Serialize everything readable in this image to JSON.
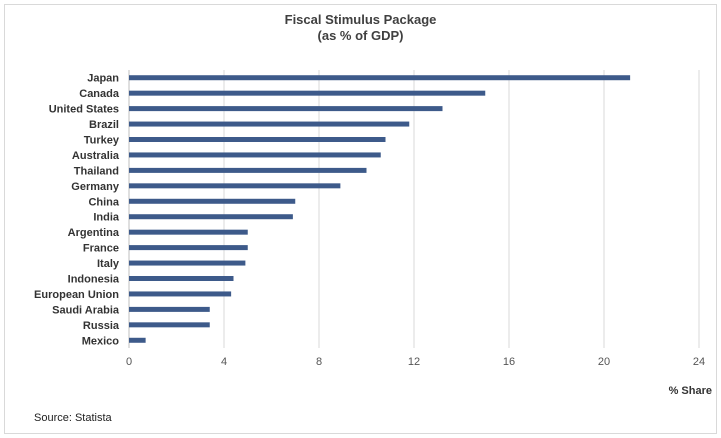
{
  "chart_data": {
    "type": "bar",
    "orientation": "horizontal",
    "title": "Fiscal Stimulus Package",
    "subtitle": "(as % of GDP)",
    "xlabel": "% Share",
    "ylabel": "",
    "categories": [
      "Japan",
      "Canada",
      "United States",
      "Brazil",
      "Turkey",
      "Australia",
      "Thailand",
      "Germany",
      "China",
      "India",
      "Argentina",
      "France",
      "Italy",
      "Indonesia",
      "European Union",
      "Saudi Arabia",
      "Russia",
      "Mexico"
    ],
    "values": [
      21.1,
      15.0,
      13.2,
      11.8,
      10.8,
      10.6,
      10.0,
      8.9,
      7.0,
      6.9,
      5.0,
      5.0,
      4.9,
      4.4,
      4.3,
      3.4,
      3.4,
      0.7
    ],
    "xlim": [
      0,
      24
    ],
    "xticks": [
      "0",
      "4",
      "8",
      "12",
      "16",
      "20",
      "24"
    ],
    "grid": "vertical",
    "bar_color": "#3d5a8a",
    "grid_color": "#d9d9d9"
  },
  "source": "Source:  Statista"
}
